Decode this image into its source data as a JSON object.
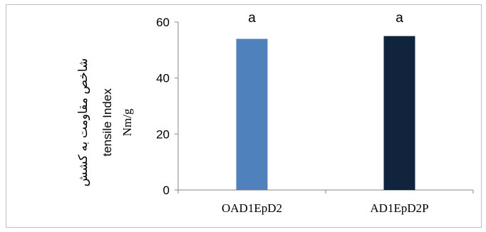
{
  "chart_data": {
    "type": "bar",
    "categories": [
      "OAD1EpD2",
      "AD1EpD2P"
    ],
    "values": [
      54,
      55
    ],
    "significance_labels": [
      "a",
      "a"
    ],
    "bar_colors": [
      "#4f81bd",
      "#10243e"
    ],
    "ylabel_lines": [
      "شاخص مقاومت به کشش",
      "tensile Index",
      "Nm/g"
    ],
    "xlabel": "",
    "title": "",
    "ylim": [
      0,
      60
    ],
    "yticks": [
      0,
      20,
      40,
      60
    ],
    "grid": false,
    "legend": "none"
  }
}
